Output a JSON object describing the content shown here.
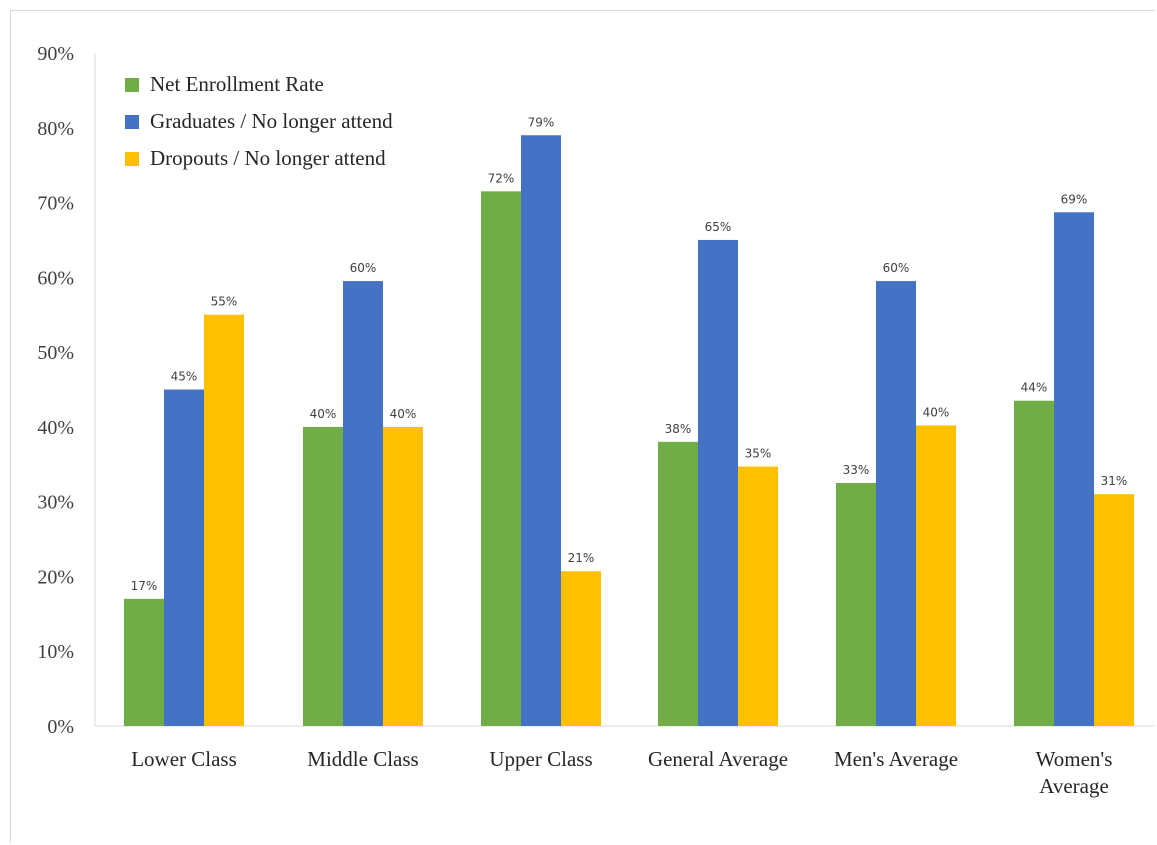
{
  "chart_data": {
    "type": "bar",
    "categories": [
      [
        "Lower Class"
      ],
      [
        "Middle Class"
      ],
      [
        "Upper Class"
      ],
      [
        "General Average"
      ],
      [
        "Men's Average"
      ],
      [
        "Women's",
        "Average"
      ]
    ],
    "series": [
      {
        "name": "Net Enrollment Rate",
        "color": "#70ad47",
        "values": [
          0.17,
          0.4,
          0.715,
          0.38,
          0.325,
          0.435
        ],
        "labels": [
          "17%",
          "40%",
          "72%",
          "38%",
          "33%",
          "44%"
        ]
      },
      {
        "name": "Graduates / No longer attend",
        "color": "#4472c4",
        "values": [
          0.45,
          0.595,
          0.79,
          0.65,
          0.595,
          0.687
        ],
        "labels": [
          "45%",
          "60%",
          "79%",
          "65%",
          "60%",
          "69%"
        ]
      },
      {
        "name": "Dropouts / No longer attend",
        "color": "#ffc000",
        "values": [
          0.55,
          0.4,
          0.207,
          0.347,
          0.402,
          0.31
        ],
        "labels": [
          "55%",
          "40%",
          "21%",
          "35%",
          "40%",
          "31%"
        ]
      }
    ],
    "y_ticks": [
      "0%",
      "10%",
      "20%",
      "30%",
      "40%",
      "50%",
      "60%",
      "70%",
      "80%",
      "90%"
    ],
    "ylim": [
      0,
      0.9
    ],
    "grid": false,
    "legend_position": "top-left"
  }
}
